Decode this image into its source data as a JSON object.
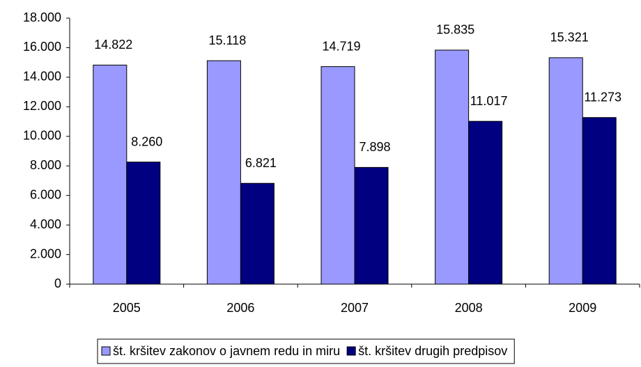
{
  "chart_data": {
    "type": "bar",
    "categories": [
      "2005",
      "2006",
      "2007",
      "2008",
      "2009"
    ],
    "series": [
      {
        "name": "št. kršitev zakonov o javnem redu in miru",
        "color": "#9999ff",
        "values": [
          14822,
          15118,
          14719,
          15835,
          15321
        ],
        "value_labels": [
          "14.822",
          "15.118",
          "14.719",
          "15.835",
          "15.321"
        ]
      },
      {
        "name": "št. kršitev drugih predpisov",
        "color": "#000080",
        "values": [
          8260,
          6821,
          7898,
          11017,
          11273
        ],
        "value_labels": [
          "8.260",
          "6.821",
          "7.898",
          "11.017",
          "11.273"
        ]
      }
    ],
    "ylim": [
      0,
      18000
    ],
    "yticks": [
      0,
      {
        "value": 2000,
        "label": "2.000"
      },
      {
        "value": 4000,
        "label": "4.000"
      },
      {
        "value": 6000,
        "label": "6.000"
      },
      {
        "value": 8000,
        "label": "8.000"
      },
      {
        "value": 10000,
        "label": "10.000"
      },
      {
        "value": 12000,
        "label": "12.000"
      },
      {
        "value": 14000,
        "label": "14.000"
      },
      {
        "value": 16000,
        "label": "16.000"
      },
      {
        "value": 18000,
        "label": "18.000"
      }
    ],
    "legend": "bottom"
  }
}
